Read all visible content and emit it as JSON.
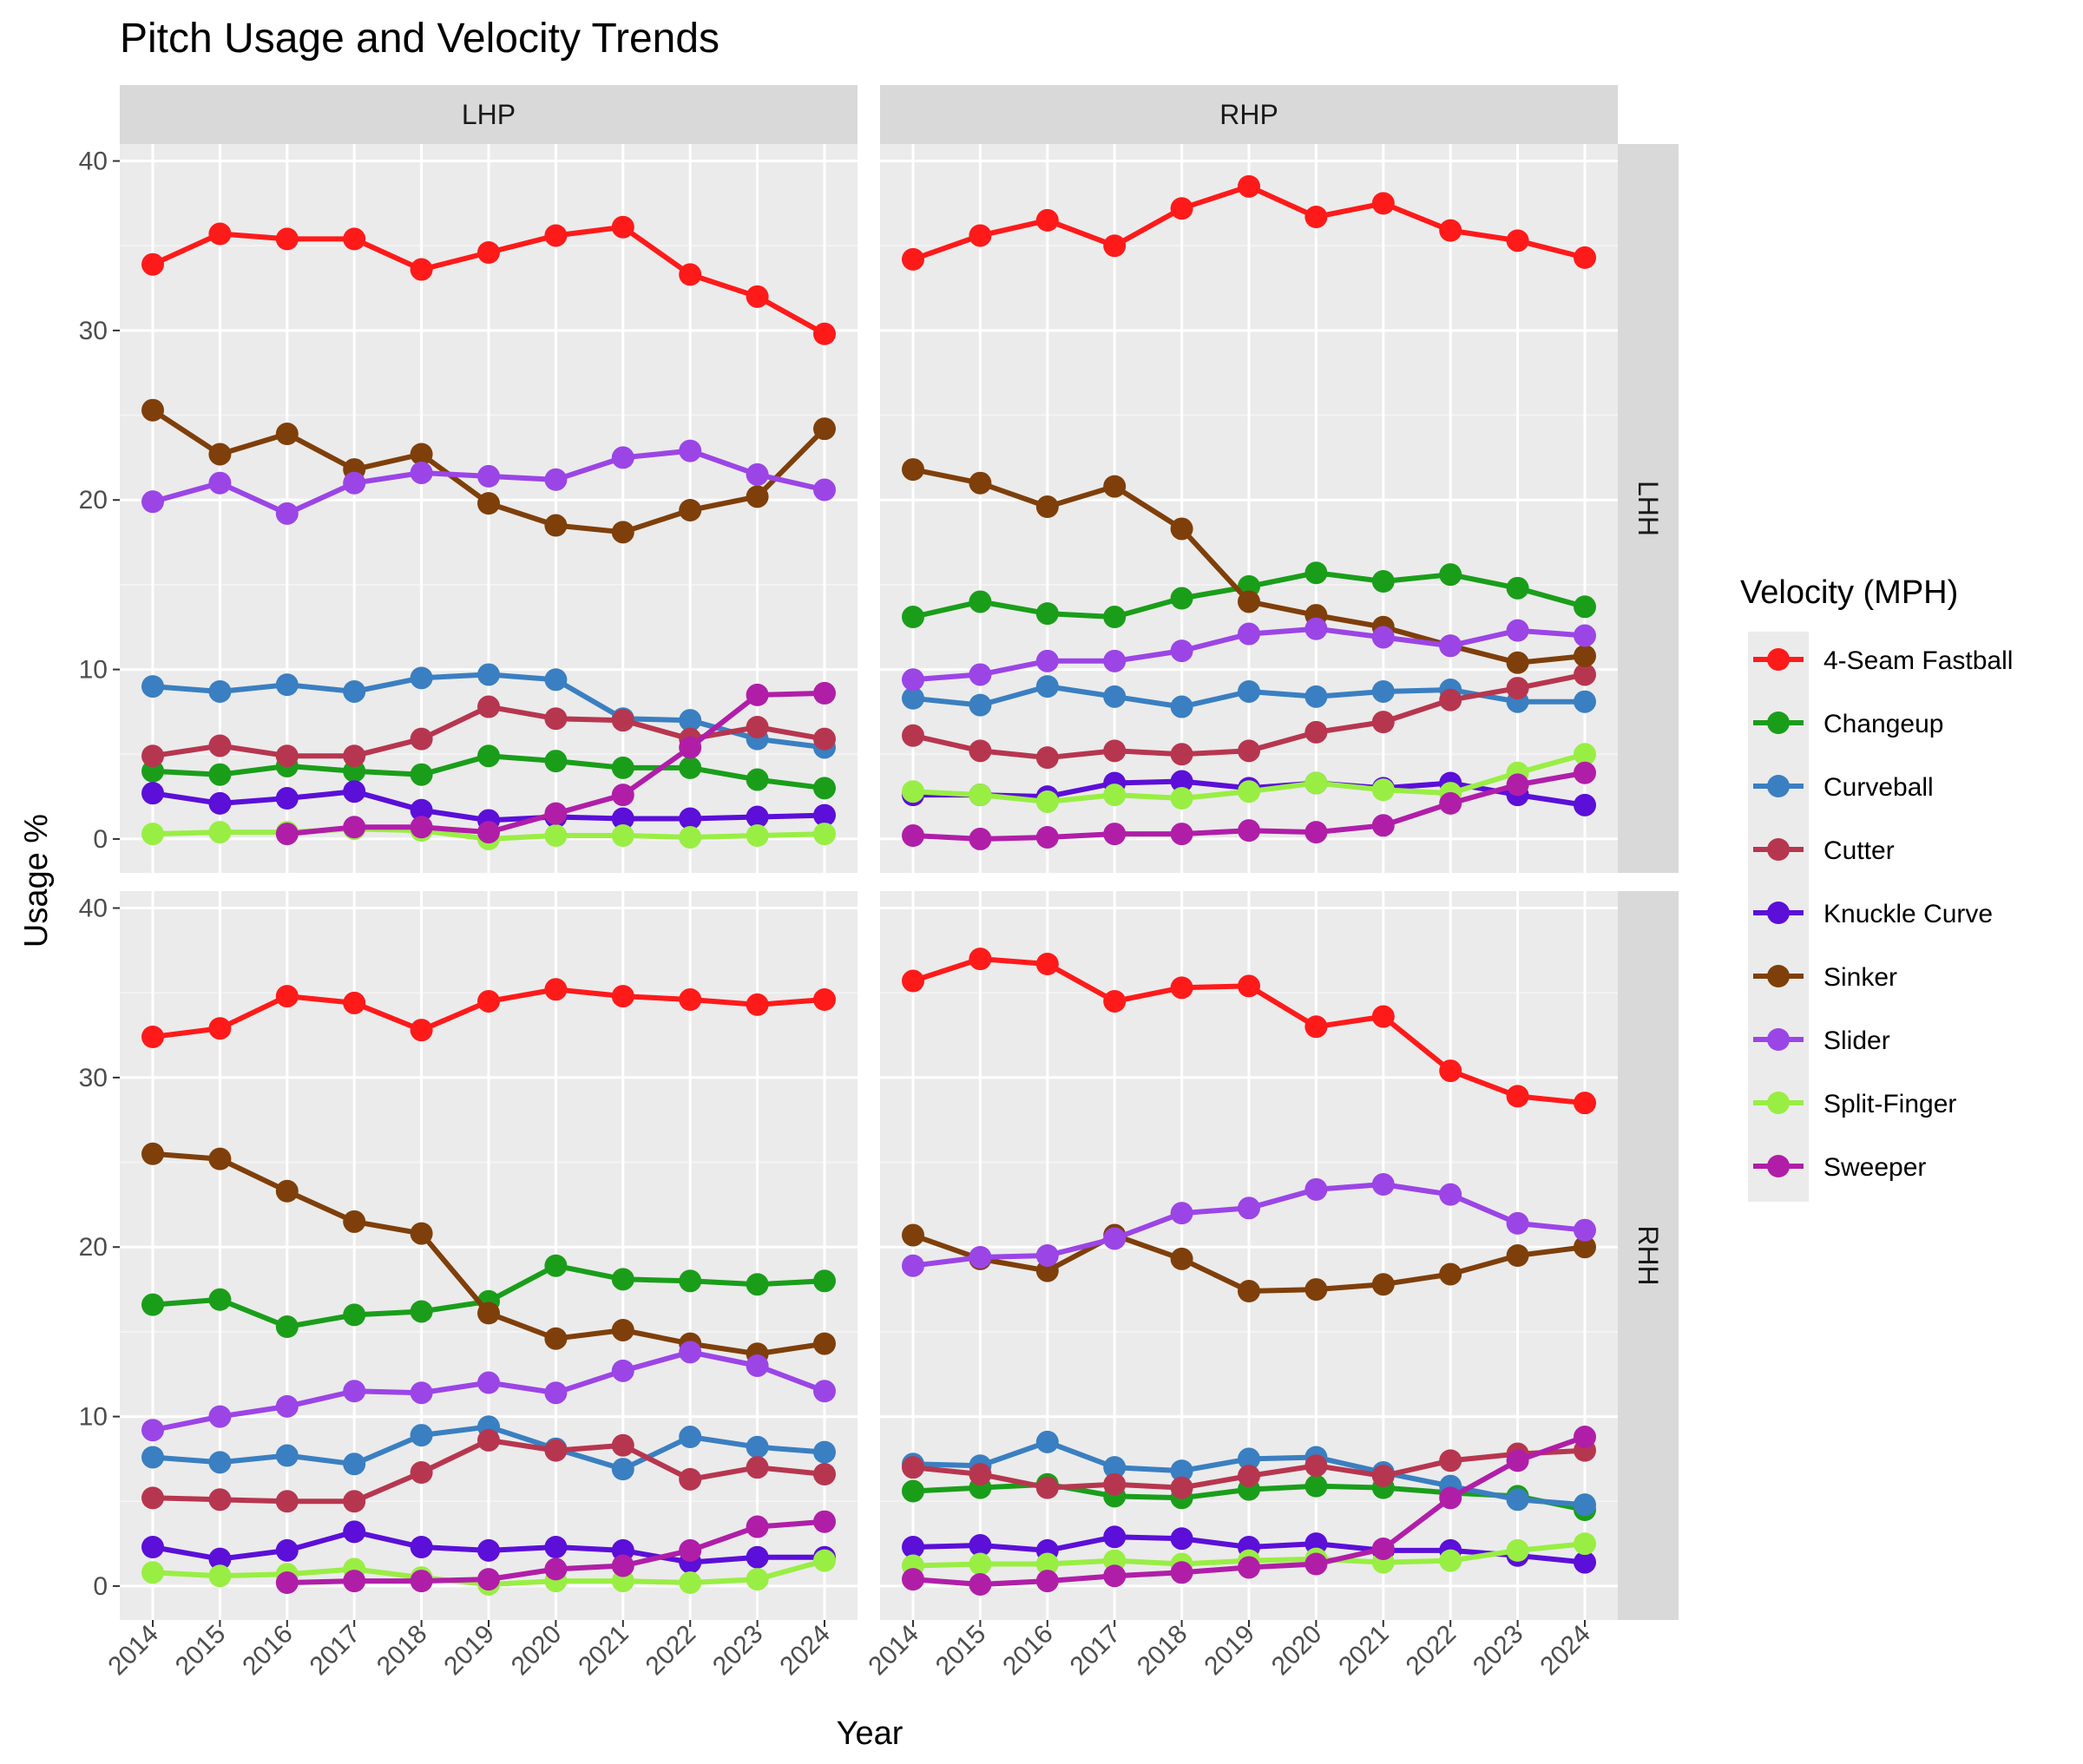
{
  "chart_data": {
    "type": "line",
    "title": "Pitch Usage and Velocity Trends",
    "xlabel": "Year",
    "ylabel": "Usage %",
    "legend_title": "Velocity (MPH)",
    "legend_position": "right",
    "ylim": [
      -2,
      41
    ],
    "yticks": [
      0,
      10,
      20,
      30,
      40
    ],
    "columns": [
      "LHP",
      "RHP"
    ],
    "rows": [
      "LHH",
      "RHH"
    ],
    "years": [
      "2014",
      "2015",
      "2016",
      "2017",
      "2018",
      "2019",
      "2020",
      "2021",
      "2022",
      "2023",
      "2024"
    ],
    "series": [
      {
        "name": "4-Seam Fastball",
        "color": "#ff1a1a"
      },
      {
        "name": "Changeup",
        "color": "#1a9e1a"
      },
      {
        "name": "Curveball",
        "color": "#3a7fc1"
      },
      {
        "name": "Cutter",
        "color": "#b7364f"
      },
      {
        "name": "Knuckle Curve",
        "color": "#5b0fd8"
      },
      {
        "name": "Sinker",
        "color": "#7f3f0a"
      },
      {
        "name": "Slider",
        "color": "#9b45e6"
      },
      {
        "name": "Split-Finger",
        "color": "#99ee44"
      },
      {
        "name": "Sweeper",
        "color": "#b01ea8"
      }
    ],
    "panels": [
      {
        "col": "LHP",
        "row": "LHH",
        "values": {
          "4-Seam Fastball": [
            33.9,
            35.7,
            35.4,
            35.4,
            33.6,
            34.6,
            35.6,
            36.1,
            33.3,
            32.0,
            29.8
          ],
          "Changeup": [
            4.0,
            3.8,
            4.3,
            4.0,
            3.8,
            4.9,
            4.6,
            4.2,
            4.2,
            3.5,
            3.0
          ],
          "Curveball": [
            9.0,
            8.7,
            9.1,
            8.7,
            9.5,
            9.7,
            9.4,
            7.1,
            7.0,
            5.9,
            5.4
          ],
          "Cutter": [
            4.9,
            5.5,
            4.9,
            4.9,
            5.9,
            7.8,
            7.1,
            7.0,
            5.9,
            6.6,
            5.9
          ],
          "Knuckle Curve": [
            2.7,
            2.1,
            2.4,
            2.8,
            1.7,
            1.1,
            1.3,
            1.2,
            1.2,
            1.3,
            1.4
          ],
          "Sinker": [
            25.3,
            22.7,
            23.9,
            21.8,
            22.7,
            19.8,
            18.5,
            18.1,
            19.4,
            20.2,
            24.2
          ],
          "Slider": [
            19.9,
            21.0,
            19.2,
            21.0,
            21.6,
            21.4,
            21.2,
            22.5,
            22.9,
            21.5,
            20.6
          ],
          "Split-Finger": [
            0.3,
            0.4,
            0.4,
            0.6,
            0.5,
            0.0,
            0.2,
            0.2,
            0.1,
            0.2,
            0.3
          ],
          "Sweeper": [
            null,
            null,
            0.3,
            0.7,
            0.7,
            0.4,
            1.5,
            2.6,
            5.4,
            8.5,
            8.6
          ]
        }
      },
      {
        "col": "RHP",
        "row": "LHH",
        "values": {
          "4-Seam Fastball": [
            34.2,
            35.6,
            36.5,
            35.0,
            37.2,
            38.5,
            36.7,
            37.5,
            35.9,
            35.3,
            34.3
          ],
          "Changeup": [
            13.1,
            14.0,
            13.3,
            13.1,
            14.2,
            14.9,
            15.7,
            15.2,
            15.6,
            14.8,
            13.7
          ],
          "Curveball": [
            8.3,
            7.9,
            9.0,
            8.4,
            7.8,
            8.7,
            8.4,
            8.7,
            8.8,
            8.1,
            8.1
          ],
          "Cutter": [
            6.1,
            5.2,
            4.8,
            5.2,
            5.0,
            5.2,
            6.3,
            6.9,
            8.2,
            8.9,
            9.7
          ],
          "Knuckle Curve": [
            2.6,
            2.6,
            2.5,
            3.3,
            3.4,
            3.0,
            3.3,
            3.0,
            3.3,
            2.6,
            2.0
          ],
          "Sinker": [
            21.8,
            21.0,
            19.6,
            20.8,
            18.3,
            14.0,
            13.2,
            12.5,
            11.4,
            10.4,
            10.8
          ],
          "Slider": [
            9.4,
            9.7,
            10.5,
            10.5,
            11.1,
            12.1,
            12.4,
            11.9,
            11.4,
            12.3,
            12.0
          ],
          "Split-Finger": [
            2.8,
            2.6,
            2.2,
            2.6,
            2.4,
            2.8,
            3.3,
            2.9,
            2.7,
            3.9,
            5.0
          ],
          "Sweeper": [
            0.2,
            0.0,
            0.1,
            0.3,
            0.3,
            0.5,
            0.4,
            0.8,
            2.1,
            3.2,
            3.9
          ]
        }
      },
      {
        "col": "LHP",
        "row": "RHH",
        "values": {
          "4-Seam Fastball": [
            32.4,
            32.9,
            34.8,
            34.4,
            32.8,
            34.5,
            35.2,
            34.8,
            34.6,
            34.3,
            34.6
          ],
          "Changeup": [
            16.6,
            16.9,
            15.3,
            16.0,
            16.2,
            16.8,
            18.9,
            18.1,
            18.0,
            17.8,
            18.0
          ],
          "Curveball": [
            7.6,
            7.3,
            7.7,
            7.2,
            8.9,
            9.4,
            8.1,
            6.9,
            8.8,
            8.2,
            7.9
          ],
          "Cutter": [
            5.2,
            5.1,
            5.0,
            5.0,
            6.7,
            8.6,
            8.0,
            8.3,
            6.3,
            7.0,
            6.6
          ],
          "Knuckle Curve": [
            2.3,
            1.6,
            2.1,
            3.2,
            2.3,
            2.1,
            2.3,
            2.1,
            1.4,
            1.7,
            1.7
          ],
          "Sinker": [
            25.5,
            25.2,
            23.3,
            21.5,
            20.8,
            16.1,
            14.6,
            15.1,
            14.3,
            13.7,
            14.3
          ],
          "Slider": [
            9.2,
            10.0,
            10.6,
            11.5,
            11.4,
            12.0,
            11.4,
            12.7,
            13.8,
            13.0,
            11.5
          ],
          "Split-Finger": [
            0.8,
            0.6,
            0.7,
            1.0,
            0.5,
            0.1,
            0.3,
            0.3,
            0.2,
            0.4,
            1.5
          ],
          "Sweeper": [
            null,
            null,
            0.2,
            0.3,
            0.3,
            0.4,
            1.0,
            1.2,
            2.1,
            3.5,
            3.8
          ]
        }
      },
      {
        "col": "RHP",
        "row": "RHH",
        "values": {
          "4-Seam Fastball": [
            35.7,
            37.0,
            36.7,
            34.5,
            35.3,
            35.4,
            33.0,
            33.6,
            30.4,
            28.9,
            28.5
          ],
          "Changeup": [
            5.6,
            5.8,
            6.0,
            5.3,
            5.2,
            5.7,
            5.9,
            5.8,
            5.5,
            5.3,
            4.5
          ],
          "Curveball": [
            7.2,
            7.1,
            8.5,
            7.0,
            6.8,
            7.5,
            7.6,
            6.7,
            5.9,
            5.1,
            4.8
          ],
          "Cutter": [
            7.0,
            6.6,
            5.8,
            6.0,
            5.8,
            6.5,
            7.1,
            6.5,
            7.4,
            7.8,
            8.0
          ],
          "Knuckle Curve": [
            2.3,
            2.4,
            2.1,
            2.9,
            2.8,
            2.3,
            2.5,
            2.1,
            2.1,
            1.8,
            1.4
          ],
          "Sinker": [
            20.7,
            19.3,
            18.6,
            20.7,
            19.3,
            17.4,
            17.5,
            17.8,
            18.4,
            19.5,
            20.0
          ],
          "Slider": [
            18.9,
            19.4,
            19.5,
            20.5,
            22.0,
            22.3,
            23.4,
            23.7,
            23.1,
            21.4,
            21.0
          ],
          "Split-Finger": [
            1.2,
            1.3,
            1.3,
            1.5,
            1.3,
            1.5,
            1.6,
            1.4,
            1.5,
            2.1,
            2.5
          ],
          "Sweeper": [
            0.4,
            0.1,
            0.3,
            0.6,
            0.8,
            1.1,
            1.3,
            2.2,
            5.2,
            7.4,
            8.8
          ]
        }
      }
    ]
  }
}
